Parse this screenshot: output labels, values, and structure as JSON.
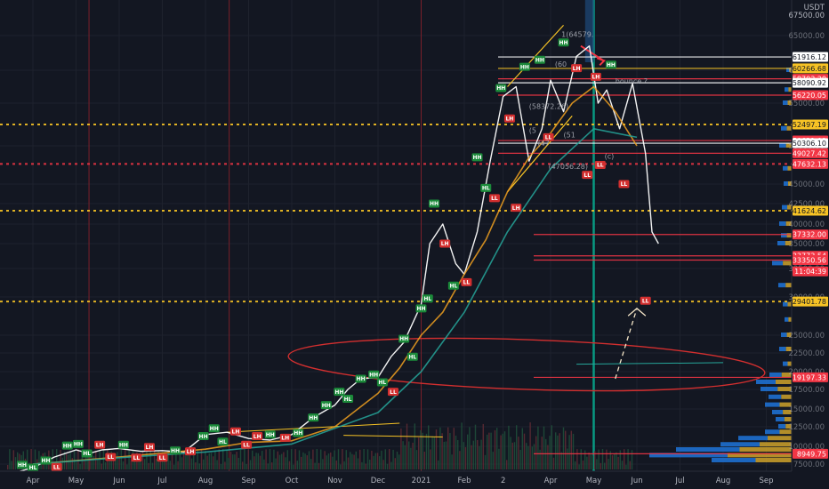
{
  "chart_data": {
    "type": "line",
    "title": "",
    "currency_label": "USDT",
    "top_price_label": "67500.00",
    "y_tick_labels": [
      "65000.00",
      "60000.00",
      "55000.00",
      "50000.00",
      "45000.00",
      "42500.00",
      "40000.00",
      "35000.00",
      "32500.00",
      "30000.00",
      "25000.00",
      "22500.00",
      "20000.00",
      "17500.00",
      "15000.00",
      "12500.00",
      "10000.00",
      "7500.00"
    ],
    "y_ticks": [
      65000,
      60000,
      55000,
      50000,
      45000,
      42500,
      40000,
      35000,
      32500,
      30000,
      25000,
      22500,
      20000,
      17500,
      15000,
      12500,
      10000,
      7500
    ],
    "x_tick_labels": [
      "Apr",
      "May",
      "Jun",
      "Jul",
      "Aug",
      "Sep",
      "Oct",
      "Nov",
      "Dec",
      "2021",
      "Feb",
      "2",
      "Apr",
      "May",
      "Jun",
      "Jul",
      "Aug",
      "Sep"
    ],
    "x_ticks": [
      0,
      1,
      2,
      3,
      4,
      5,
      6,
      7,
      8,
      9,
      10,
      10.9,
      12,
      13,
      14,
      15,
      16,
      17
    ],
    "ylim": [
      6000,
      70500
    ],
    "xlim": [
      -0.4,
      17.6
    ],
    "series": [
      {
        "color": "#ffffff",
        "x": [
          -0.3,
          0,
          0.5,
          1,
          1.3,
          1.6,
          2,
          2.5,
          3,
          3.5,
          4,
          4.5,
          5,
          5.5,
          6,
          6.5,
          7,
          7.3,
          7.6,
          8,
          8.3,
          8.6,
          9,
          9.2,
          9.5,
          9.8,
          10,
          10.3,
          10.6,
          10.9,
          11.2,
          11.5,
          11.8,
          12,
          12.3,
          12.6,
          12.9,
          13.1,
          13.3,
          13.6,
          13.9,
          14.2,
          14.35,
          14.5
        ],
        "y": [
          6500,
          7000,
          8500,
          9500,
          9000,
          9500,
          9700,
          9300,
          9400,
          9200,
          11500,
          11800,
          11000,
          10800,
          11500,
          13800,
          15500,
          17500,
          19000,
          19200,
          22000,
          24000,
          29000,
          35000,
          40000,
          33000,
          32000,
          38000,
          48000,
          56000,
          57500,
          48000,
          52000,
          58500,
          54000,
          62000,
          63500,
          55000,
          57000,
          52000,
          58000,
          49000,
          38000,
          35000
        ]
      },
      {
        "color": "#f0a020",
        "x": [
          0,
          2,
          4,
          5,
          6,
          7,
          8,
          8.5,
          9,
          9.5,
          10,
          10.5,
          11,
          11.5,
          12,
          12.5,
          13,
          13.5,
          14
        ],
        "y": [
          7500,
          8500,
          9600,
          10500,
          10700,
          12500,
          17000,
          20500,
          25000,
          28000,
          32000,
          36000,
          44000,
          48500,
          51500,
          55000,
          57500,
          54000,
          50000
        ]
      },
      {
        "color": "#26a69a",
        "x": [
          0,
          2,
          4,
          6,
          8,
          9,
          10,
          11,
          12,
          13,
          14
        ],
        "y": [
          7500,
          8400,
          9200,
          10300,
          14500,
          20000,
          28000,
          38000,
          47000,
          52000,
          51000
        ]
      }
    ],
    "horizontal_levels": [
      {
        "value": 61916.12,
        "label": "61916.12",
        "color": "#ffffff",
        "style": "solid"
      },
      {
        "value": 60266.68,
        "label": "60266.68",
        "color": "#f7c325",
        "style": "solid"
      },
      {
        "value": 58703.2,
        "label": "58703.20",
        "color": "#f23645",
        "style": "solid"
      },
      {
        "value": 58090.92,
        "label": "58090.92",
        "color": "#ffffff",
        "style": "solid"
      },
      {
        "value": 56220.05,
        "label": "56220.05",
        "color": "#f23645",
        "style": "solid"
      },
      {
        "value": 52497.19,
        "label": "52497.19",
        "color": "#f7c325",
        "style": "dotted"
      },
      {
        "value": 50621.09,
        "label": "50621.09",
        "color": "#f23645",
        "style": "solid"
      },
      {
        "value": 50306.1,
        "label": "50306.10",
        "color": "#ffffff",
        "style": "solid"
      },
      {
        "value": 49027.42,
        "label": "49027.42",
        "color": "#f23645",
        "style": "solid"
      },
      {
        "value": 47632.13,
        "label": "47632.13",
        "color": "#f23645",
        "style": "dotted"
      },
      {
        "value": 41624.62,
        "label": "41624.62",
        "color": "#f7c325",
        "style": "dotted"
      },
      {
        "value": 37332.0,
        "label": "37332.00",
        "color": "#f23645",
        "style": "solid"
      },
      {
        "value": 33773.54,
        "label": "33773.54",
        "color": "#f23645",
        "style": "solid"
      },
      {
        "value": 33350.56,
        "label": "33350.56",
        "color": "#f23645",
        "style": "solid"
      },
      {
        "value": 29401.78,
        "label": "29401.78",
        "color": "#f7c325",
        "style": "dotted"
      },
      {
        "value": 19197.33,
        "label": "19197.33",
        "color": "#f23645",
        "style": "solid"
      },
      {
        "value": 8949.75,
        "label": "8949.75",
        "color": "#f23645",
        "style": "solid"
      }
    ],
    "current_price_label": {
      "value": 32250,
      "label": "11:04:39",
      "color": "#f23645"
    },
    "annotations": [
      {
        "text": "1(64579.",
        "x": 12.25,
        "y": 64800
      },
      {
        "text": "bounce ?",
        "x": 13.5,
        "y": 58000
      },
      {
        "text": "(60",
        "x": 12.1,
        "y": 60500
      },
      {
        "text": "(58372.26)",
        "x": 11.5,
        "y": 54300
      },
      {
        "text": "(5",
        "x": 11.5,
        "y": 51500
      },
      {
        "text": "(51",
        "x": 12.3,
        "y": 51000
      },
      {
        "text": "(47",
        "x": 11.7,
        "y": 50000
      },
      {
        "text": "(c)",
        "x": 13.25,
        "y": 48300
      },
      {
        "text": "(47056.28)",
        "x": 11.95,
        "y": 47000
      }
    ],
    "swing_labels": [
      {
        "text": "HH",
        "x": -0.25,
        "y": 7400,
        "c": "g"
      },
      {
        "text": "HL",
        "x": 0.0,
        "y": 7000,
        "c": "g"
      },
      {
        "text": "HH",
        "x": 0.3,
        "y": 8000,
        "c": "g"
      },
      {
        "text": "LL",
        "x": 0.55,
        "y": 7100,
        "c": "r"
      },
      {
        "text": "HH",
        "x": 0.8,
        "y": 10100,
        "c": "g"
      },
      {
        "text": "HH",
        "x": 1.05,
        "y": 10300,
        "c": "g"
      },
      {
        "text": "HL",
        "x": 1.25,
        "y": 9000,
        "c": "g"
      },
      {
        "text": "LH",
        "x": 1.55,
        "y": 10200,
        "c": "r"
      },
      {
        "text": "LL",
        "x": 1.8,
        "y": 8500,
        "c": "r"
      },
      {
        "text": "HH",
        "x": 2.1,
        "y": 10200,
        "c": "g"
      },
      {
        "text": "LL",
        "x": 2.4,
        "y": 8400,
        "c": "r"
      },
      {
        "text": "LH",
        "x": 2.7,
        "y": 9900,
        "c": "r"
      },
      {
        "text": "LL",
        "x": 3.0,
        "y": 8400,
        "c": "r"
      },
      {
        "text": "HH",
        "x": 3.3,
        "y": 9400,
        "c": "g"
      },
      {
        "text": "LH",
        "x": 3.65,
        "y": 9300,
        "c": "r"
      },
      {
        "text": "HH",
        "x": 3.95,
        "y": 11300,
        "c": "g"
      },
      {
        "text": "HH",
        "x": 4.2,
        "y": 12300,
        "c": "g"
      },
      {
        "text": "HL",
        "x": 4.4,
        "y": 10600,
        "c": "g"
      },
      {
        "text": "LH",
        "x": 4.7,
        "y": 11900,
        "c": "r"
      },
      {
        "text": "LL",
        "x": 4.95,
        "y": 10200,
        "c": "r"
      },
      {
        "text": "LH",
        "x": 5.2,
        "y": 11300,
        "c": "r"
      },
      {
        "text": "HH",
        "x": 5.5,
        "y": 11500,
        "c": "g"
      },
      {
        "text": "LH",
        "x": 5.85,
        "y": 11100,
        "c": "r"
      },
      {
        "text": "HH",
        "x": 6.15,
        "y": 11700,
        "c": "g"
      },
      {
        "text": "HH",
        "x": 6.5,
        "y": 13800,
        "c": "g"
      },
      {
        "text": "HH",
        "x": 6.8,
        "y": 15500,
        "c": "g"
      },
      {
        "text": "HH",
        "x": 7.1,
        "y": 17200,
        "c": "g"
      },
      {
        "text": "HL",
        "x": 7.3,
        "y": 16300,
        "c": "g"
      },
      {
        "text": "HH",
        "x": 7.6,
        "y": 19000,
        "c": "g"
      },
      {
        "text": "HH",
        "x": 7.9,
        "y": 19600,
        "c": "g"
      },
      {
        "text": "HL",
        "x": 8.1,
        "y": 18500,
        "c": "g"
      },
      {
        "text": "LL",
        "x": 8.35,
        "y": 17200,
        "c": "r"
      },
      {
        "text": "HH",
        "x": 8.6,
        "y": 24500,
        "c": "g"
      },
      {
        "text": "HL",
        "x": 8.8,
        "y": 22000,
        "c": "g"
      },
      {
        "text": "HH",
        "x": 9.0,
        "y": 28500,
        "c": "g"
      },
      {
        "text": "HL",
        "x": 9.15,
        "y": 29800,
        "c": "g"
      },
      {
        "text": "HH",
        "x": 9.3,
        "y": 42500,
        "c": "g"
      },
      {
        "text": "LH",
        "x": 9.55,
        "y": 35000,
        "c": "r"
      },
      {
        "text": "HL",
        "x": 9.75,
        "y": 31000,
        "c": "g"
      },
      {
        "text": "LL",
        "x": 10.05,
        "y": 31300,
        "c": "r"
      },
      {
        "text": "HH",
        "x": 10.3,
        "y": 48500,
        "c": "g"
      },
      {
        "text": "HL",
        "x": 10.5,
        "y": 44500,
        "c": "g"
      },
      {
        "text": "LL",
        "x": 10.7,
        "y": 43200,
        "c": "r"
      },
      {
        "text": "HH",
        "x": 10.85,
        "y": 57300,
        "c": "g"
      },
      {
        "text": "LH",
        "x": 11.05,
        "y": 53200,
        "c": "r"
      },
      {
        "text": "LH",
        "x": 11.2,
        "y": 42000,
        "c": "r"
      },
      {
        "text": "HH",
        "x": 11.4,
        "y": 60500,
        "c": "g"
      },
      {
        "text": "HH",
        "x": 11.75,
        "y": 61500,
        "c": "g"
      },
      {
        "text": "LL",
        "x": 11.95,
        "y": 51000,
        "c": "r"
      },
      {
        "text": "HH",
        "x": 12.3,
        "y": 64000,
        "c": "g"
      },
      {
        "text": "LH",
        "x": 12.6,
        "y": 60300,
        "c": "r"
      },
      {
        "text": "LL",
        "x": 12.85,
        "y": 46200,
        "c": "r"
      },
      {
        "text": "LL",
        "x": 13.15,
        "y": 47500,
        "c": "r"
      },
      {
        "text": "HH",
        "x": 13.4,
        "y": 60800,
        "c": "g"
      },
      {
        "text": "LH",
        "x": 13.05,
        "y": 59000,
        "c": "r"
      },
      {
        "text": "LL",
        "x": 13.7,
        "y": 45000,
        "c": "r"
      },
      {
        "text": "LL",
        "x": 14.2,
        "y": 29500,
        "c": "r"
      }
    ]
  }
}
